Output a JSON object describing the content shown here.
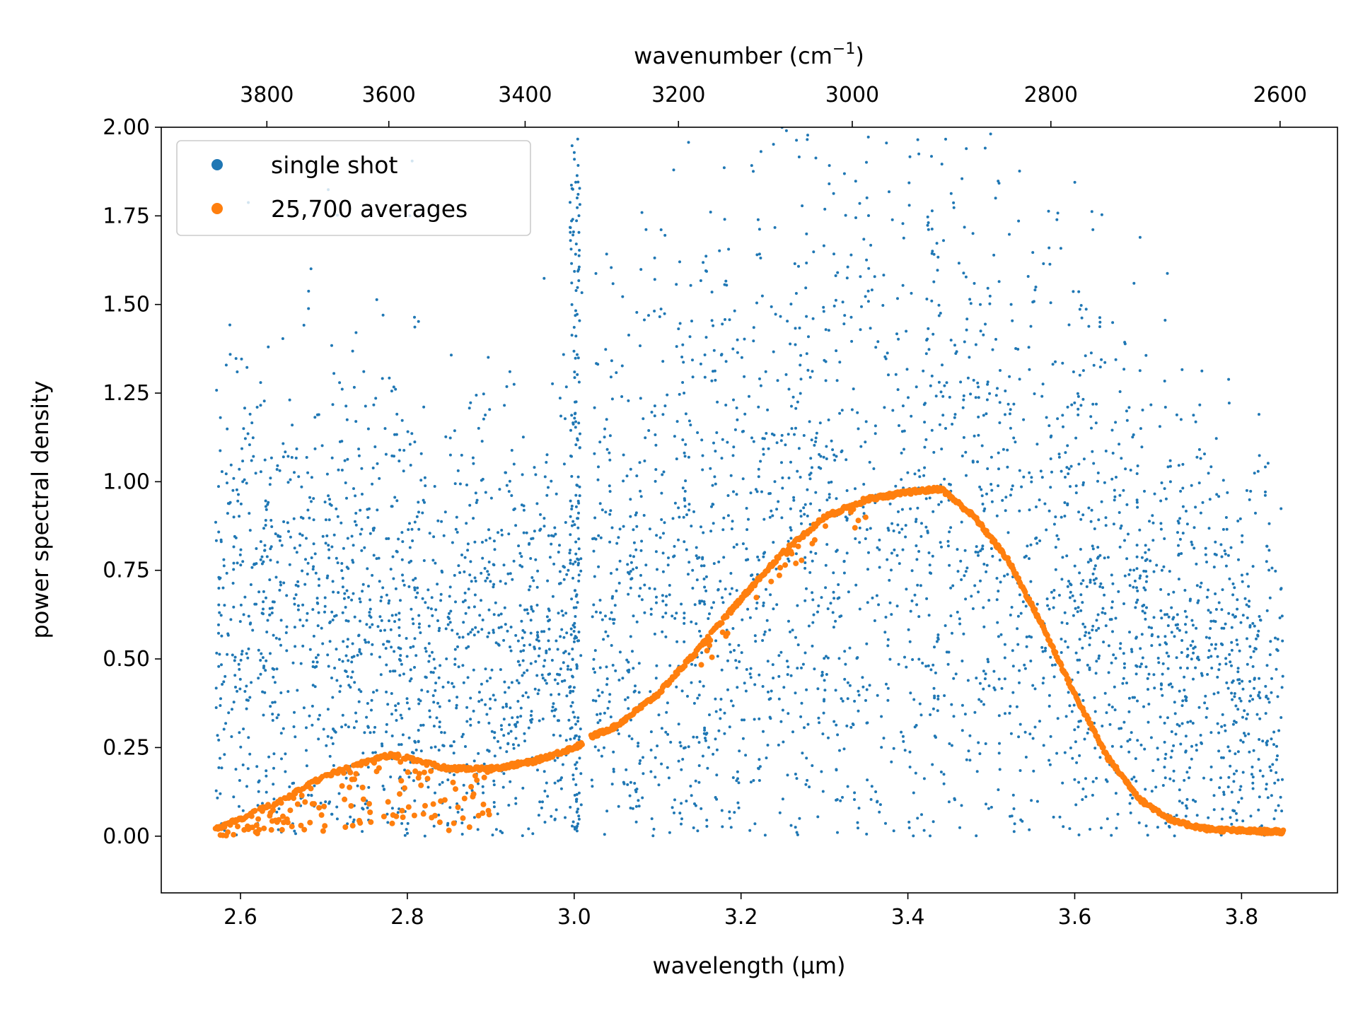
{
  "chart_data": {
    "type": "scatter",
    "xlabel": "wavelength (μm)",
    "ylabel": "power spectral density",
    "secondary_xlabel_main": "wavenumber (cm",
    "secondary_xlabel_sup": "−1",
    "secondary_xlabel_end": ")",
    "xlim": [
      2.505,
      3.915
    ],
    "ylim": [
      -0.16,
      2.0
    ],
    "x_ticks": [
      2.6,
      2.8,
      3.0,
      3.2,
      3.4,
      3.6,
      3.8
    ],
    "x_tick_labels": [
      "2.6",
      "2.8",
      "3.0",
      "3.2",
      "3.4",
      "3.6",
      "3.8"
    ],
    "y_ticks": [
      0.0,
      0.25,
      0.5,
      0.75,
      1.0,
      1.25,
      1.5,
      1.75,
      2.0
    ],
    "y_tick_labels": [
      "0.00",
      "0.25",
      "0.50",
      "0.75",
      "1.00",
      "1.25",
      "1.50",
      "1.75",
      "2.00"
    ],
    "top_ticks": [
      3800,
      3600,
      3400,
      3200,
      3000,
      2800,
      2600
    ],
    "top_tick_labels": [
      "3800",
      "3600",
      "3400",
      "3200",
      "3000",
      "2800",
      "2600"
    ],
    "legend_position": "upper-left",
    "grid": false,
    "series": [
      {
        "name": "single shot",
        "color": "#1f77b4",
        "x_range": [
          2.57,
          3.85
        ],
        "gap": [
          3.01,
          3.02
        ],
        "mean_envelope": {
          "x": [
            2.57,
            2.65,
            2.75,
            2.85,
            2.95,
            3.01,
            3.02,
            3.1,
            3.2,
            3.3,
            3.4,
            3.5,
            3.6,
            3.7,
            3.8,
            3.85
          ],
          "y": [
            0.6,
            0.62,
            0.6,
            0.55,
            0.5,
            0.5,
            0.6,
            0.7,
            0.8,
            0.9,
            0.95,
            0.9,
            0.75,
            0.55,
            0.45,
            0.4
          ]
        }
      },
      {
        "name": "25,700 averages",
        "color": "#ff7f0e",
        "x": [
          2.57,
          2.6,
          2.65,
          2.7,
          2.75,
          2.78,
          2.8,
          2.85,
          2.9,
          2.95,
          3.0,
          3.01,
          3.02,
          3.05,
          3.1,
          3.15,
          3.2,
          3.25,
          3.3,
          3.35,
          3.4,
          3.44,
          3.48,
          3.52,
          3.56,
          3.6,
          3.64,
          3.68,
          3.72,
          3.76,
          3.8,
          3.85
        ],
        "y": [
          0.02,
          0.05,
          0.1,
          0.17,
          0.21,
          0.23,
          0.22,
          0.19,
          0.19,
          0.21,
          0.25,
          0.26,
          0.28,
          0.31,
          0.4,
          0.53,
          0.67,
          0.8,
          0.9,
          0.95,
          0.97,
          0.98,
          0.9,
          0.78,
          0.6,
          0.4,
          0.22,
          0.1,
          0.04,
          0.02,
          0.015,
          0.012
        ]
      }
    ]
  }
}
